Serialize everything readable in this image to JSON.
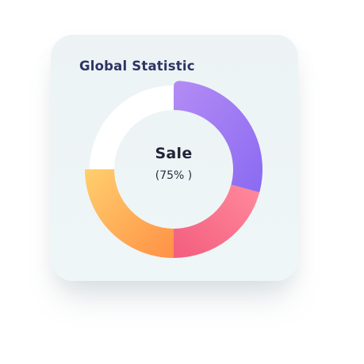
{
  "card": {
    "title": "Global Statistic"
  },
  "center": {
    "label": "Sale",
    "value": "(75% )"
  },
  "colors": {
    "purple_start": "#b48cf4",
    "purple_end": "#8a6af2",
    "pink_start": "#ff8a9c",
    "pink_end": "#f35d7e",
    "orange_start": "#ffcf6e",
    "orange_end": "#ff9145",
    "track": "#ffffff"
  },
  "chart_data": {
    "type": "pie",
    "values": [
      25,
      25,
      25,
      25
    ],
    "colors": [
      "#9f7bf3",
      "#f7708a",
      "#ffae58",
      "#ffffff"
    ]
  }
}
